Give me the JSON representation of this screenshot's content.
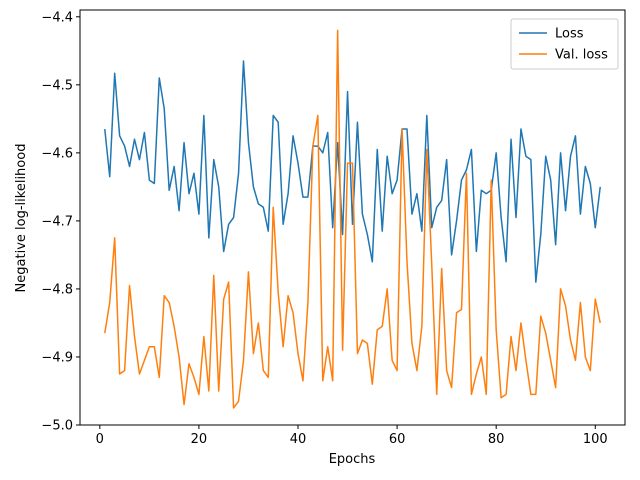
{
  "chart_data": {
    "type": "line",
    "title": "",
    "xlabel": "Epochs",
    "ylabel": "Negative log-likelihood",
    "xlim": [
      -4,
      106
    ],
    "ylim": [
      -5.0,
      -4.39
    ],
    "xticks": [
      0,
      20,
      40,
      60,
      80,
      100
    ],
    "yticks": [
      -5.0,
      -4.9,
      -4.8,
      -4.7,
      -4.6,
      -4.5,
      -4.4
    ],
    "ytick_labels": [
      "−5.0",
      "−4.9",
      "−4.8",
      "−4.7",
      "−4.6",
      "−4.5",
      "−4.4"
    ],
    "grid": false,
    "legend_position": "top-right",
    "x": [
      1,
      2,
      3,
      4,
      5,
      6,
      7,
      8,
      9,
      10,
      11,
      12,
      13,
      14,
      15,
      16,
      17,
      18,
      19,
      20,
      21,
      22,
      23,
      24,
      25,
      26,
      27,
      28,
      29,
      30,
      31,
      32,
      33,
      34,
      35,
      36,
      37,
      38,
      39,
      40,
      41,
      42,
      43,
      44,
      45,
      46,
      47,
      48,
      49,
      50,
      51,
      52,
      53,
      54,
      55,
      56,
      57,
      58,
      59,
      60,
      61,
      62,
      63,
      64,
      65,
      66,
      67,
      68,
      69,
      70,
      71,
      72,
      73,
      74,
      75,
      76,
      77,
      78,
      79,
      80,
      81,
      82,
      83,
      84,
      85,
      86,
      87,
      88,
      89,
      90,
      91,
      92,
      93,
      94,
      95,
      96,
      97,
      98,
      99,
      100,
      101
    ],
    "series": [
      {
        "name": "Loss",
        "color": "#1f77b4",
        "values": [
          -4.565,
          -4.635,
          -4.483,
          -4.575,
          -4.59,
          -4.62,
          -4.58,
          -4.61,
          -4.57,
          -4.64,
          -4.645,
          -4.49,
          -4.535,
          -4.655,
          -4.62,
          -4.685,
          -4.585,
          -4.66,
          -4.63,
          -4.69,
          -4.545,
          -4.725,
          -4.61,
          -4.65,
          -4.745,
          -4.705,
          -4.695,
          -4.63,
          -4.465,
          -4.585,
          -4.65,
          -4.675,
          -4.68,
          -4.715,
          -4.545,
          -4.555,
          -4.705,
          -4.66,
          -4.575,
          -4.615,
          -4.665,
          -4.665,
          -4.59,
          -4.59,
          -4.6,
          -4.57,
          -4.71,
          -4.585,
          -4.72,
          -4.51,
          -4.705,
          -4.555,
          -4.69,
          -4.72,
          -4.76,
          -4.595,
          -4.715,
          -4.605,
          -4.66,
          -4.64,
          -4.565,
          -4.565,
          -4.69,
          -4.66,
          -4.715,
          -4.545,
          -4.71,
          -4.68,
          -4.67,
          -4.61,
          -4.75,
          -4.7,
          -4.64,
          -4.625,
          -4.595,
          -4.745,
          -4.655,
          -4.66,
          -4.655,
          -4.6,
          -4.695,
          -4.76,
          -4.58,
          -4.695,
          -4.565,
          -4.605,
          -4.61,
          -4.79,
          -4.72,
          -4.605,
          -4.64,
          -4.735,
          -4.6,
          -4.685,
          -4.605,
          -4.575,
          -4.69,
          -4.62,
          -4.645,
          -4.71,
          -4.65
        ]
      },
      {
        "name": "Val. loss",
        "color": "#ff7f0e",
        "values": [
          -4.865,
          -4.82,
          -4.725,
          -4.925,
          -4.92,
          -4.795,
          -4.87,
          -4.925,
          -4.905,
          -4.885,
          -4.885,
          -4.93,
          -4.81,
          -4.82,
          -4.855,
          -4.9,
          -4.97,
          -4.91,
          -4.93,
          -4.955,
          -4.87,
          -4.95,
          -4.78,
          -4.95,
          -4.815,
          -4.79,
          -4.975,
          -4.965,
          -4.905,
          -4.775,
          -4.895,
          -4.85,
          -4.92,
          -4.93,
          -4.68,
          -4.805,
          -4.885,
          -4.81,
          -4.835,
          -4.895,
          -4.935,
          -4.82,
          -4.59,
          -4.545,
          -4.935,
          -4.885,
          -4.935,
          -4.42,
          -4.89,
          -4.615,
          -4.615,
          -4.895,
          -4.875,
          -4.88,
          -4.94,
          -4.86,
          -4.855,
          -4.8,
          -4.905,
          -4.92,
          -4.565,
          -4.76,
          -4.88,
          -4.92,
          -4.855,
          -4.595,
          -4.765,
          -4.955,
          -4.77,
          -4.92,
          -4.945,
          -4.835,
          -4.83,
          -4.63,
          -4.955,
          -4.925,
          -4.9,
          -4.955,
          -4.64,
          -4.86,
          -4.96,
          -4.955,
          -4.87,
          -4.92,
          -4.85,
          -4.905,
          -4.955,
          -4.955,
          -4.84,
          -4.865,
          -4.905,
          -4.945,
          -4.8,
          -4.825,
          -4.875,
          -4.905,
          -4.82,
          -4.9,
          -4.92,
          -4.815,
          -4.85
        ]
      }
    ]
  }
}
